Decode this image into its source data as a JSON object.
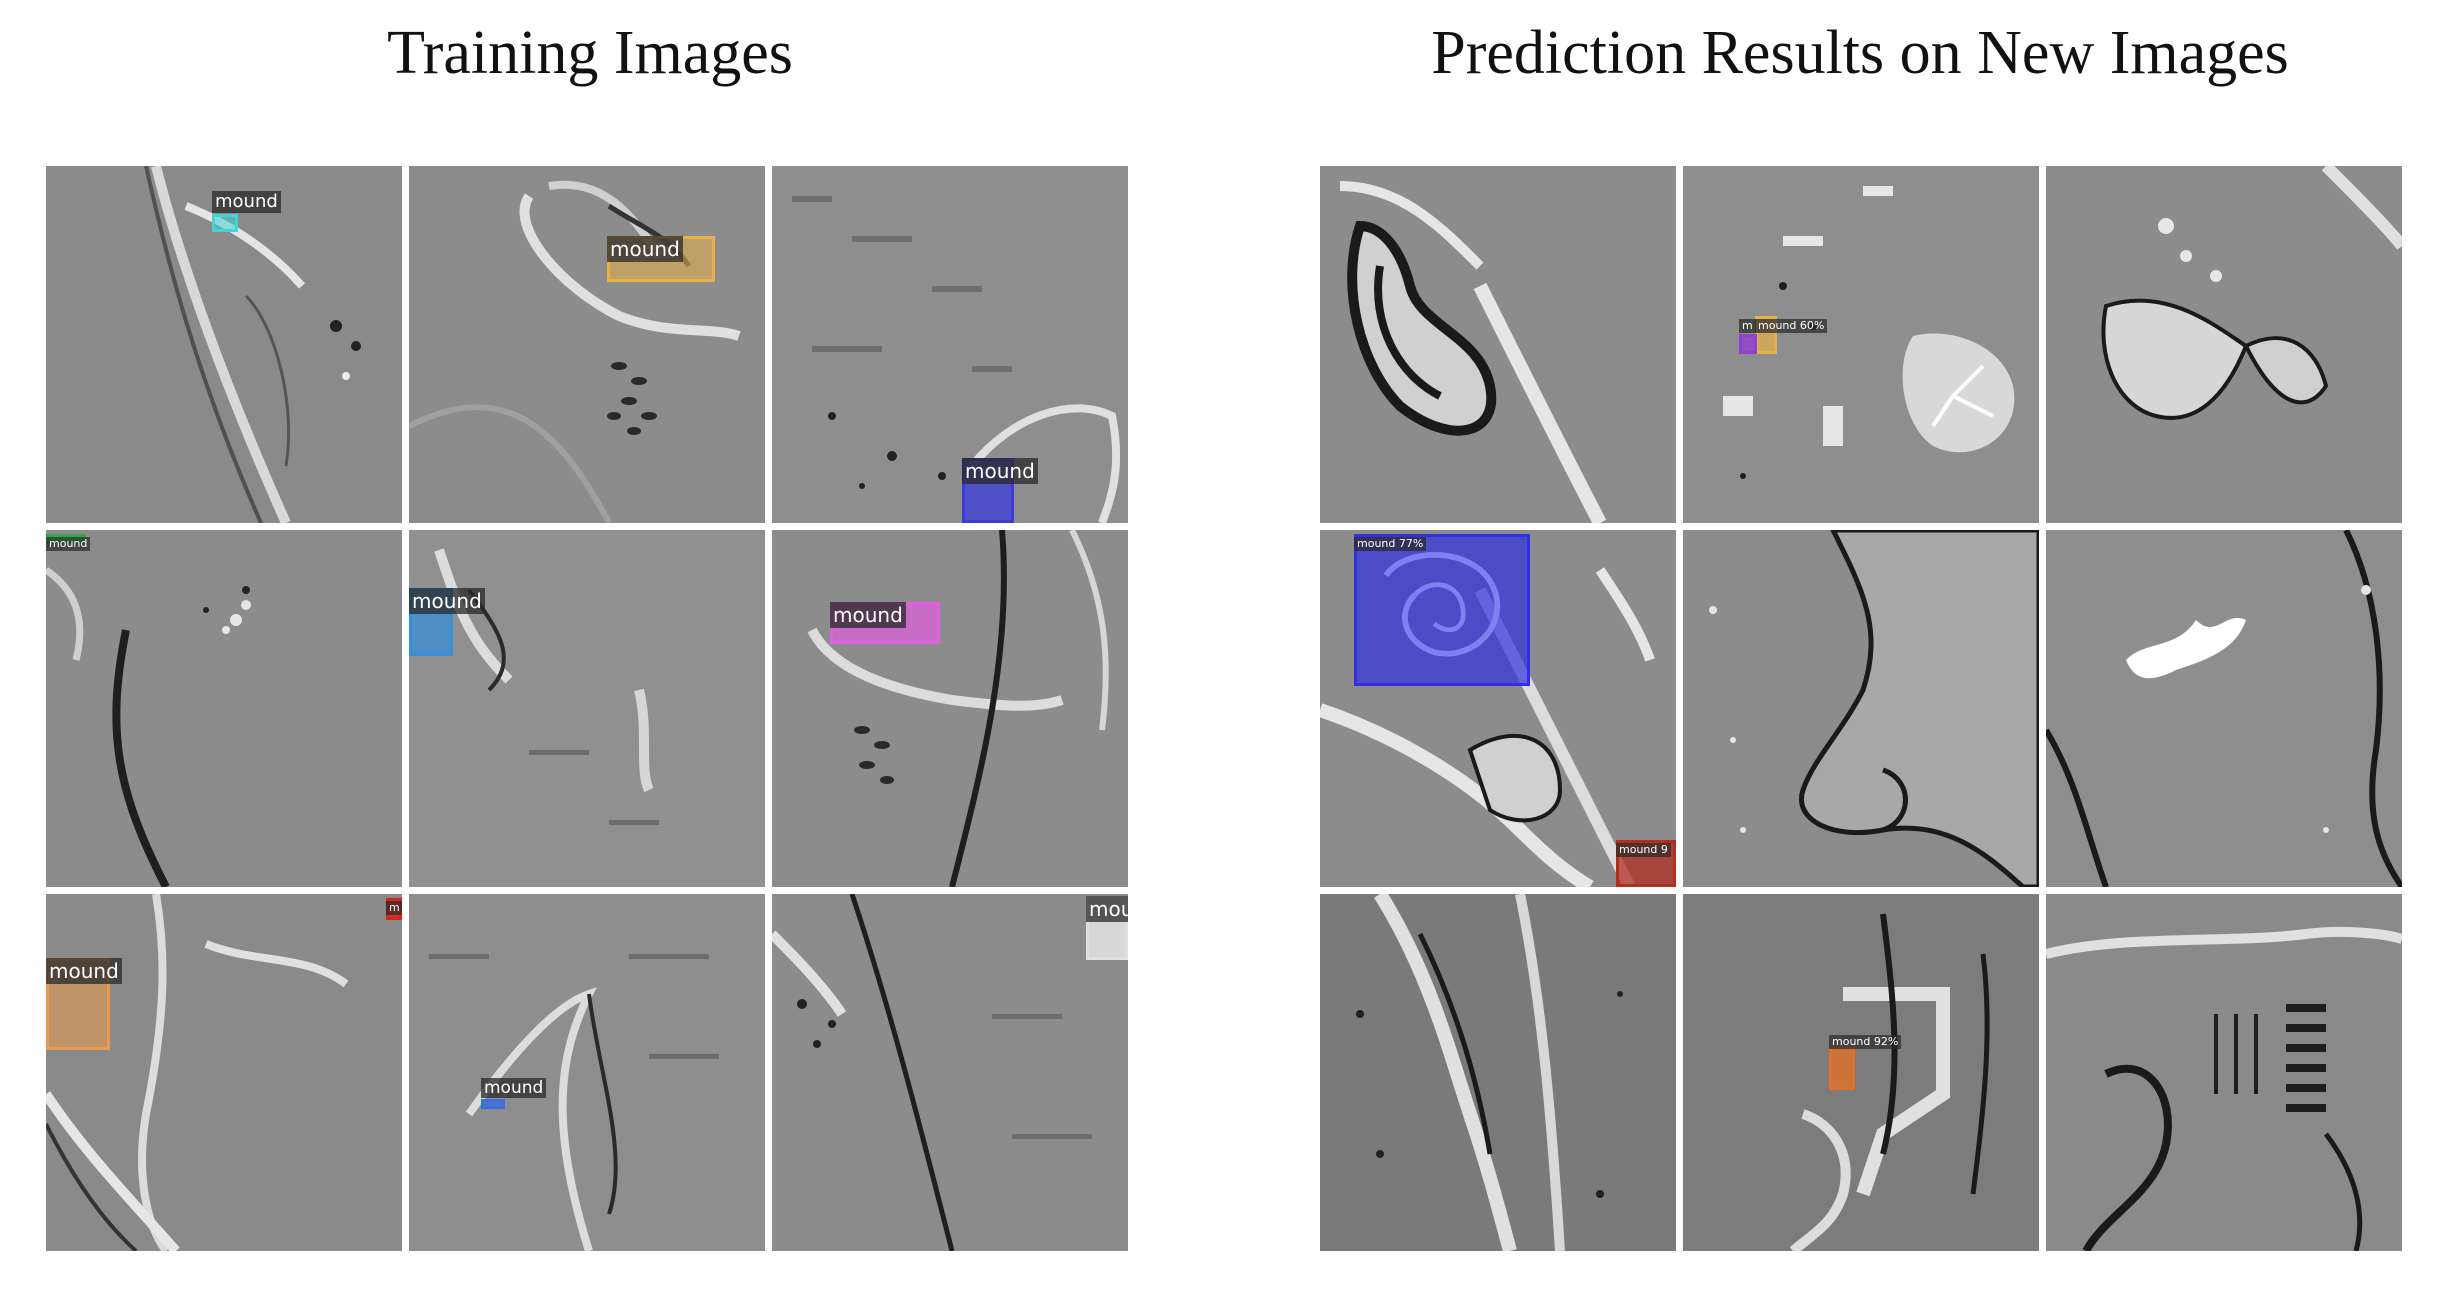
{
  "titles": {
    "left": "Training Images",
    "right": "Prediction Results on New Images"
  },
  "training": {
    "detections": [
      {
        "label": "mound",
        "color": "#3fd6d6"
      },
      {
        "label": "mound",
        "color": "#e8b04a"
      },
      {
        "label": "mound",
        "color": "#3b3bd9"
      },
      {
        "label": "mound",
        "color": "#2ea84a"
      },
      {
        "label": "mound",
        "color": "#3a8fd9"
      },
      {
        "label": "mound",
        "color": "#e060e0"
      },
      {
        "label": "mound",
        "color": "#e89b4a"
      },
      {
        "label": "m",
        "color": "#e02020"
      },
      {
        "label": "mound",
        "color": "#3a6fe0"
      },
      {
        "label": "mou",
        "color": "#e0e0e0"
      }
    ]
  },
  "prediction": {
    "detections": [
      {
        "label": "mound 60%",
        "color": "#e8b04a"
      },
      {
        "label": "m",
        "color": "#9040d0"
      },
      {
        "label": "mound 77%",
        "color": "#3030e0"
      },
      {
        "label": "mound 9",
        "color": "#b03020"
      },
      {
        "label": "mound 92%",
        "color": "#e0702a"
      }
    ]
  }
}
